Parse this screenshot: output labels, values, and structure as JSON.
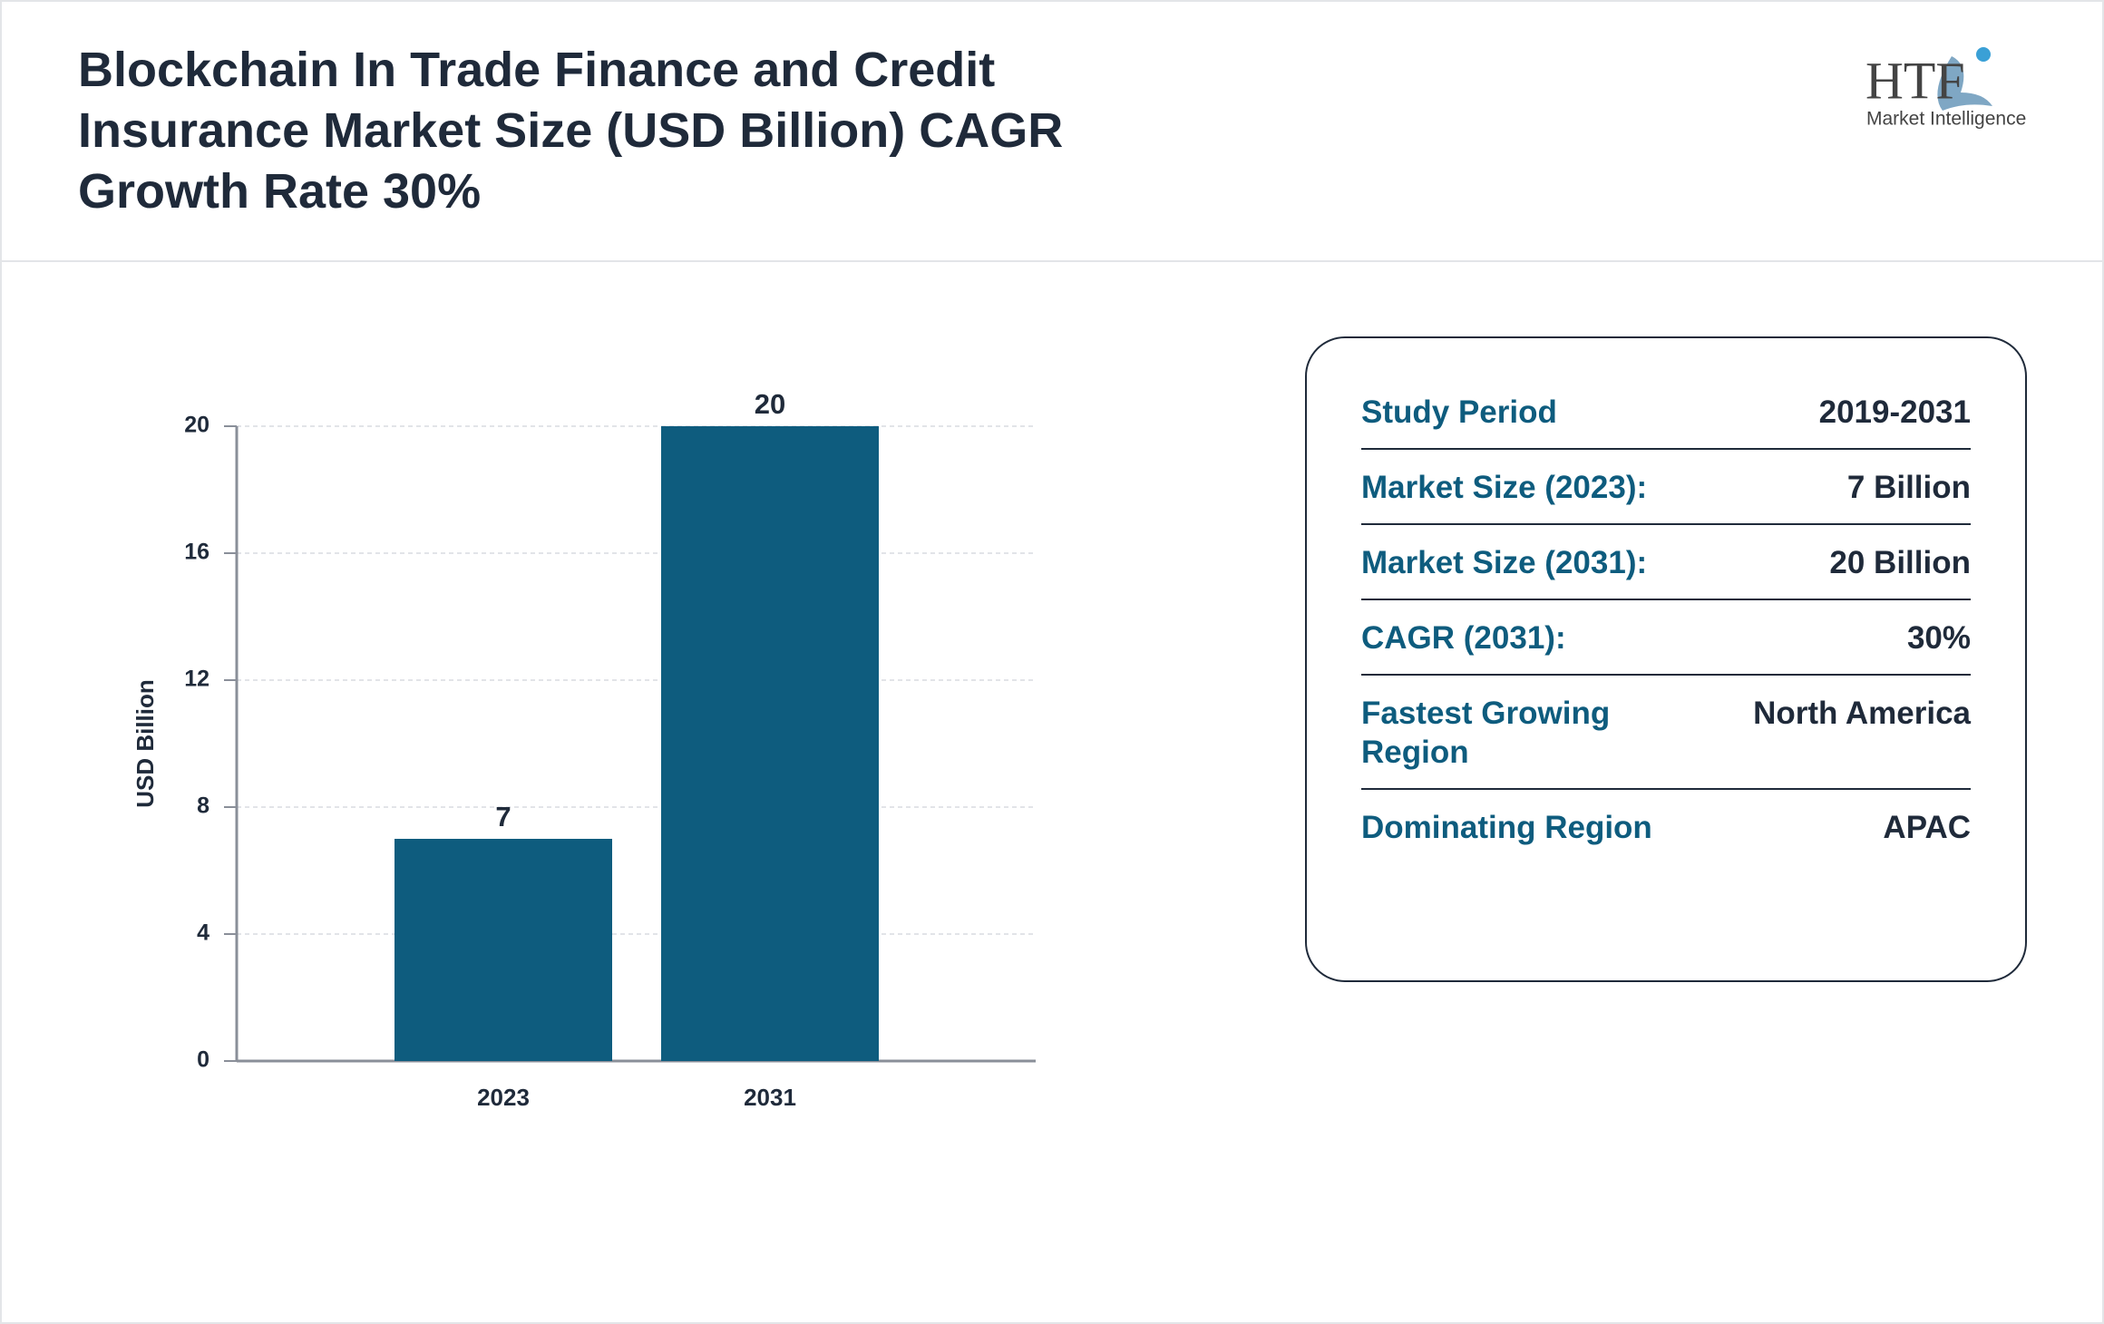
{
  "header": {
    "title": "Blockchain In Trade Finance and Credit Insurance Market Size (USD Billion) CAGR Growth Rate 30%",
    "logo": "HTF",
    "logo_subtitle": "Market Intelligence"
  },
  "chart_data": {
    "type": "bar",
    "y_label": "USD Billion",
    "categories": [
      "2023",
      "2031"
    ],
    "values": [
      7,
      20
    ],
    "color": "#0e5c7e",
    "ylim": [
      0,
      20
    ],
    "yticks": [
      0,
      4,
      8,
      12,
      16,
      20
    ],
    "grid": true
  },
  "summary": {
    "rows": [
      [
        "Study Period",
        "2019-2031"
      ],
      [
        "Market Size (2023):",
        "7 Billion"
      ],
      [
        "Market Size (2031):",
        "20 Billion"
      ],
      [
        "CAGR (2031):",
        "30%"
      ],
      [
        "Fastest Growing Region",
        "North America"
      ],
      [
        "Dominating Region",
        "APAC"
      ]
    ]
  }
}
